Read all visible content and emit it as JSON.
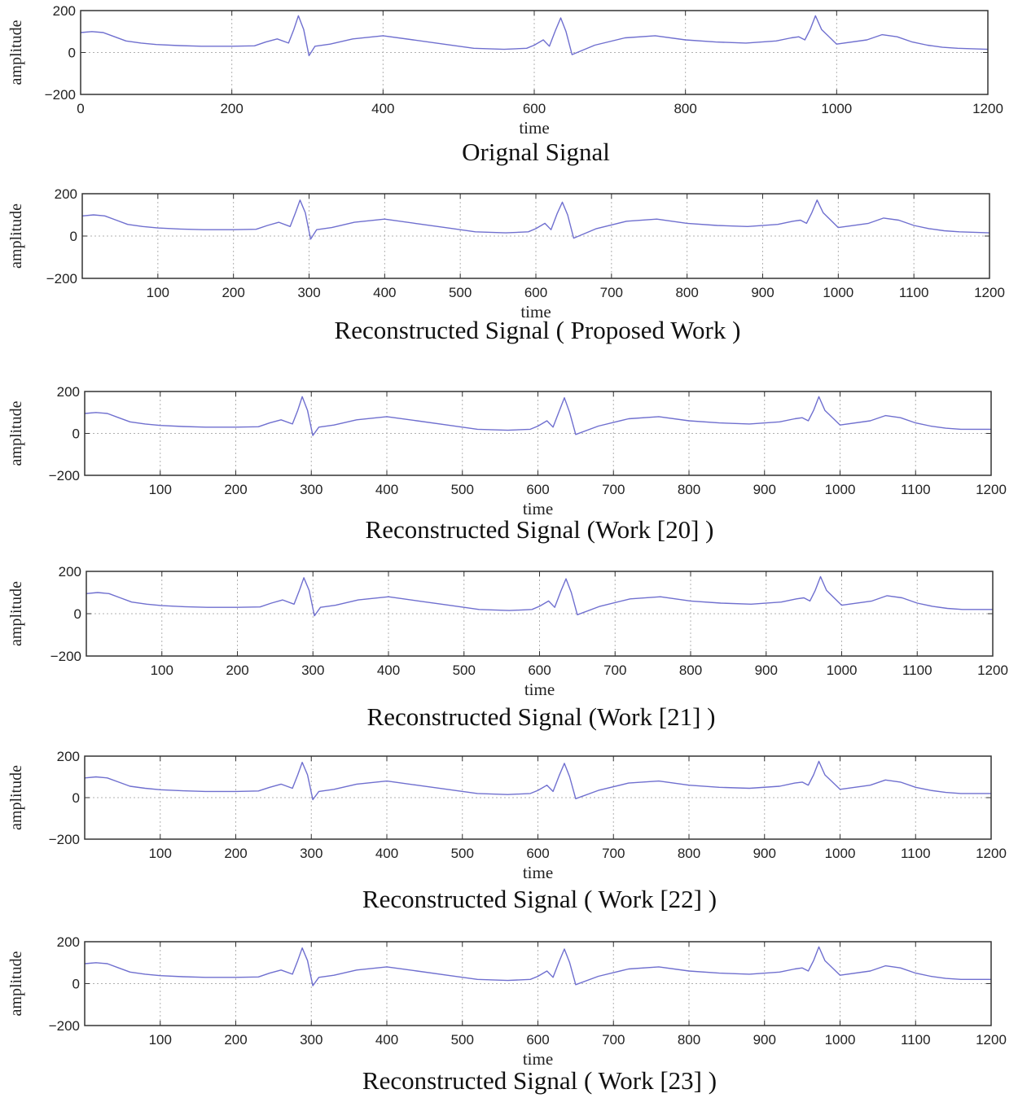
{
  "figure": {
    "line_color": "#6f6fcf",
    "frame_color": "#333333",
    "grid_color": "#b0b0b0"
  },
  "chart_data": [
    {
      "type": "line",
      "title": "Orignal Signal",
      "xlabel": "time",
      "ylabel": "amplitude",
      "xlim": [
        0,
        1200
      ],
      "ylim": [
        -200,
        200
      ],
      "xticks": [
        0,
        200,
        400,
        600,
        800,
        1000,
        1200
      ],
      "yticks": [
        200,
        0,
        -200
      ],
      "x_tick_labels": [
        "0",
        "200",
        "400",
        "600",
        "800",
        "1000",
        "1200"
      ],
      "y_tick_labels": [
        "200",
        "0",
        "−200"
      ],
      "grid": true,
      "series": [
        {
          "x": [
            0,
            15,
            30,
            45,
            60,
            80,
            100,
            130,
            160,
            200,
            230,
            245,
            260,
            275,
            282,
            288,
            295,
            302,
            310,
            330,
            360,
            400,
            440,
            480,
            520,
            560,
            590,
            600,
            612,
            620,
            628,
            635,
            642,
            650,
            680,
            720,
            760,
            800,
            840,
            880,
            920,
            940,
            950,
            958,
            965,
            972,
            980,
            1000,
            1040,
            1060,
            1080,
            1100,
            1120,
            1140,
            1160,
            1200
          ],
          "y": [
            95,
            100,
            95,
            75,
            55,
            45,
            38,
            33,
            30,
            30,
            32,
            50,
            65,
            45,
            110,
            175,
            110,
            -15,
            30,
            40,
            65,
            80,
            60,
            40,
            20,
            15,
            20,
            35,
            60,
            30,
            105,
            165,
            100,
            -10,
            35,
            70,
            80,
            60,
            50,
            45,
            55,
            70,
            75,
            60,
            110,
            175,
            110,
            40,
            60,
            85,
            75,
            50,
            35,
            25,
            20,
            15
          ]
        }
      ]
    },
    {
      "type": "line",
      "title": "Reconstructed Signal ( Proposed Work )",
      "xlabel": "time",
      "ylabel": "amplitude",
      "xlim": [
        0,
        1200
      ],
      "ylim": [
        -200,
        200
      ],
      "xticks": [
        100,
        200,
        300,
        400,
        500,
        600,
        700,
        800,
        900,
        1000,
        1100,
        1200
      ],
      "yticks": [
        200,
        0,
        -200
      ],
      "x_tick_labels": [
        "100",
        "200",
        "300",
        "400",
        "500",
        "600",
        "700",
        "800",
        "900",
        "1000",
        "1100",
        "1200"
      ],
      "y_tick_labels": [
        "200",
        "0",
        "−200"
      ],
      "grid": true,
      "series": [
        {
          "x": [
            0,
            15,
            30,
            45,
            60,
            80,
            100,
            130,
            160,
            200,
            230,
            245,
            260,
            275,
            282,
            288,
            295,
            302,
            310,
            330,
            360,
            400,
            440,
            480,
            520,
            560,
            590,
            600,
            612,
            620,
            628,
            635,
            642,
            650,
            680,
            720,
            760,
            800,
            840,
            880,
            920,
            940,
            950,
            958,
            965,
            972,
            980,
            1000,
            1040,
            1060,
            1080,
            1100,
            1120,
            1140,
            1160,
            1200
          ],
          "y": [
            95,
            100,
            95,
            75,
            55,
            45,
            38,
            33,
            30,
            30,
            32,
            50,
            65,
            45,
            110,
            170,
            110,
            -15,
            30,
            40,
            65,
            80,
            60,
            40,
            20,
            15,
            20,
            35,
            60,
            30,
            105,
            160,
            100,
            -10,
            35,
            70,
            80,
            60,
            50,
            45,
            55,
            70,
            75,
            60,
            110,
            170,
            110,
            40,
            60,
            85,
            75,
            50,
            35,
            25,
            20,
            15
          ]
        }
      ]
    },
    {
      "type": "line",
      "title": "Reconstructed Signal (Work [20] )",
      "xlabel": "time",
      "ylabel": "amplitude",
      "xlim": [
        0,
        1200
      ],
      "ylim": [
        -200,
        200
      ],
      "xticks": [
        100,
        200,
        300,
        400,
        500,
        600,
        700,
        800,
        900,
        1000,
        1100,
        1200
      ],
      "yticks": [
        200,
        0,
        -200
      ],
      "x_tick_labels": [
        "100",
        "200",
        "300",
        "400",
        "500",
        "600",
        "700",
        "800",
        "900",
        "1000",
        "1100",
        "1200"
      ],
      "y_tick_labels": [
        "200",
        "0",
        "−200"
      ],
      "grid": true,
      "series": [
        {
          "x": [
            0,
            15,
            30,
            45,
            60,
            80,
            100,
            130,
            160,
            200,
            230,
            245,
            260,
            275,
            282,
            288,
            295,
            302,
            310,
            330,
            360,
            400,
            440,
            480,
            520,
            560,
            590,
            600,
            612,
            620,
            628,
            635,
            642,
            650,
            680,
            720,
            760,
            800,
            840,
            880,
            920,
            940,
            950,
            958,
            965,
            972,
            980,
            1000,
            1040,
            1060,
            1080,
            1100,
            1120,
            1140,
            1160,
            1200
          ],
          "y": [
            95,
            100,
            95,
            75,
            55,
            45,
            38,
            33,
            30,
            30,
            32,
            50,
            65,
            45,
            110,
            175,
            110,
            -10,
            30,
            40,
            65,
            80,
            60,
            40,
            20,
            15,
            20,
            35,
            60,
            30,
            105,
            170,
            100,
            -5,
            35,
            70,
            80,
            60,
            50,
            45,
            55,
            70,
            75,
            60,
            110,
            175,
            110,
            40,
            60,
            85,
            75,
            50,
            35,
            25,
            20,
            20
          ]
        }
      ]
    },
    {
      "type": "line",
      "title": "Reconstructed Signal (Work [21] )",
      "xlabel": "time",
      "ylabel": "amplitude",
      "xlim": [
        0,
        1200
      ],
      "ylim": [
        -200,
        200
      ],
      "xticks": [
        100,
        200,
        300,
        400,
        500,
        600,
        700,
        800,
        900,
        1000,
        1100,
        1200
      ],
      "yticks": [
        200,
        0,
        -200
      ],
      "x_tick_labels": [
        "100",
        "200",
        "300",
        "400",
        "500",
        "600",
        "700",
        "800",
        "900",
        "1000",
        "1100",
        "1200"
      ],
      "y_tick_labels": [
        "200",
        "0",
        "−200"
      ],
      "grid": true,
      "series": [
        {
          "x": [
            0,
            15,
            30,
            45,
            60,
            80,
            100,
            130,
            160,
            200,
            230,
            245,
            260,
            275,
            282,
            288,
            295,
            302,
            310,
            330,
            360,
            400,
            440,
            480,
            520,
            560,
            590,
            600,
            612,
            620,
            628,
            635,
            642,
            650,
            680,
            720,
            760,
            800,
            840,
            880,
            920,
            940,
            950,
            958,
            965,
            972,
            980,
            1000,
            1040,
            1060,
            1080,
            1100,
            1120,
            1140,
            1160,
            1200
          ],
          "y": [
            95,
            100,
            95,
            75,
            55,
            45,
            38,
            33,
            30,
            30,
            32,
            50,
            65,
            45,
            110,
            170,
            110,
            -10,
            30,
            40,
            65,
            80,
            60,
            40,
            20,
            15,
            20,
            35,
            60,
            30,
            105,
            165,
            100,
            -5,
            35,
            70,
            80,
            60,
            50,
            45,
            55,
            70,
            75,
            60,
            110,
            175,
            110,
            40,
            60,
            85,
            75,
            50,
            35,
            25,
            20,
            20
          ]
        }
      ]
    },
    {
      "type": "line",
      "title": "Reconstructed Signal ( Work [22] )",
      "xlabel": "time",
      "ylabel": "amplitude",
      "xlim": [
        0,
        1200
      ],
      "ylim": [
        -200,
        200
      ],
      "xticks": [
        100,
        200,
        300,
        400,
        500,
        600,
        700,
        800,
        900,
        1000,
        1100,
        1200
      ],
      "yticks": [
        200,
        0,
        -200
      ],
      "x_tick_labels": [
        "100",
        "200",
        "300",
        "400",
        "500",
        "600",
        "700",
        "800",
        "900",
        "1000",
        "1100",
        "1200"
      ],
      "y_tick_labels": [
        "200",
        "0",
        "−200"
      ],
      "grid": true,
      "series": [
        {
          "x": [
            0,
            15,
            30,
            45,
            60,
            80,
            100,
            130,
            160,
            200,
            230,
            245,
            260,
            275,
            282,
            288,
            295,
            302,
            310,
            330,
            360,
            400,
            440,
            480,
            520,
            560,
            590,
            600,
            612,
            620,
            628,
            635,
            642,
            650,
            680,
            720,
            760,
            800,
            840,
            880,
            920,
            940,
            950,
            958,
            965,
            972,
            980,
            1000,
            1040,
            1060,
            1080,
            1100,
            1120,
            1140,
            1160,
            1200
          ],
          "y": [
            95,
            100,
            95,
            75,
            55,
            45,
            38,
            33,
            30,
            30,
            32,
            50,
            65,
            45,
            110,
            170,
            110,
            -10,
            30,
            40,
            65,
            80,
            60,
            40,
            20,
            15,
            20,
            35,
            60,
            30,
            105,
            165,
            100,
            -5,
            35,
            70,
            80,
            60,
            50,
            45,
            55,
            70,
            75,
            60,
            110,
            175,
            110,
            40,
            60,
            85,
            75,
            50,
            35,
            25,
            20,
            20
          ]
        }
      ]
    },
    {
      "type": "line",
      "title": "Reconstructed Signal ( Work [23] )",
      "xlabel": "time",
      "ylabel": "amplitude",
      "xlim": [
        0,
        1200
      ],
      "ylim": [
        -200,
        200
      ],
      "xticks": [
        100,
        200,
        300,
        400,
        500,
        600,
        700,
        800,
        900,
        1000,
        1100,
        1200
      ],
      "yticks": [
        200,
        0,
        -200
      ],
      "x_tick_labels": [
        "100",
        "200",
        "300",
        "400",
        "500",
        "600",
        "700",
        "800",
        "900",
        "1000",
        "1100",
        "1200"
      ],
      "y_tick_labels": [
        "200",
        "0",
        "−200"
      ],
      "grid": true,
      "series": [
        {
          "x": [
            0,
            15,
            30,
            45,
            60,
            80,
            100,
            130,
            160,
            200,
            230,
            245,
            260,
            275,
            282,
            288,
            295,
            302,
            310,
            330,
            360,
            400,
            440,
            480,
            520,
            560,
            590,
            600,
            612,
            620,
            628,
            635,
            642,
            650,
            680,
            720,
            760,
            800,
            840,
            880,
            920,
            940,
            950,
            958,
            965,
            972,
            980,
            1000,
            1040,
            1060,
            1080,
            1100,
            1120,
            1140,
            1160,
            1200
          ],
          "y": [
            95,
            100,
            95,
            75,
            55,
            45,
            38,
            33,
            30,
            30,
            32,
            50,
            65,
            45,
            110,
            170,
            110,
            -10,
            30,
            40,
            65,
            80,
            60,
            40,
            20,
            15,
            20,
            35,
            60,
            30,
            105,
            165,
            100,
            -5,
            35,
            70,
            80,
            60,
            50,
            45,
            55,
            70,
            75,
            60,
            110,
            175,
            110,
            40,
            60,
            85,
            75,
            50,
            35,
            25,
            20,
            20
          ]
        }
      ]
    }
  ]
}
